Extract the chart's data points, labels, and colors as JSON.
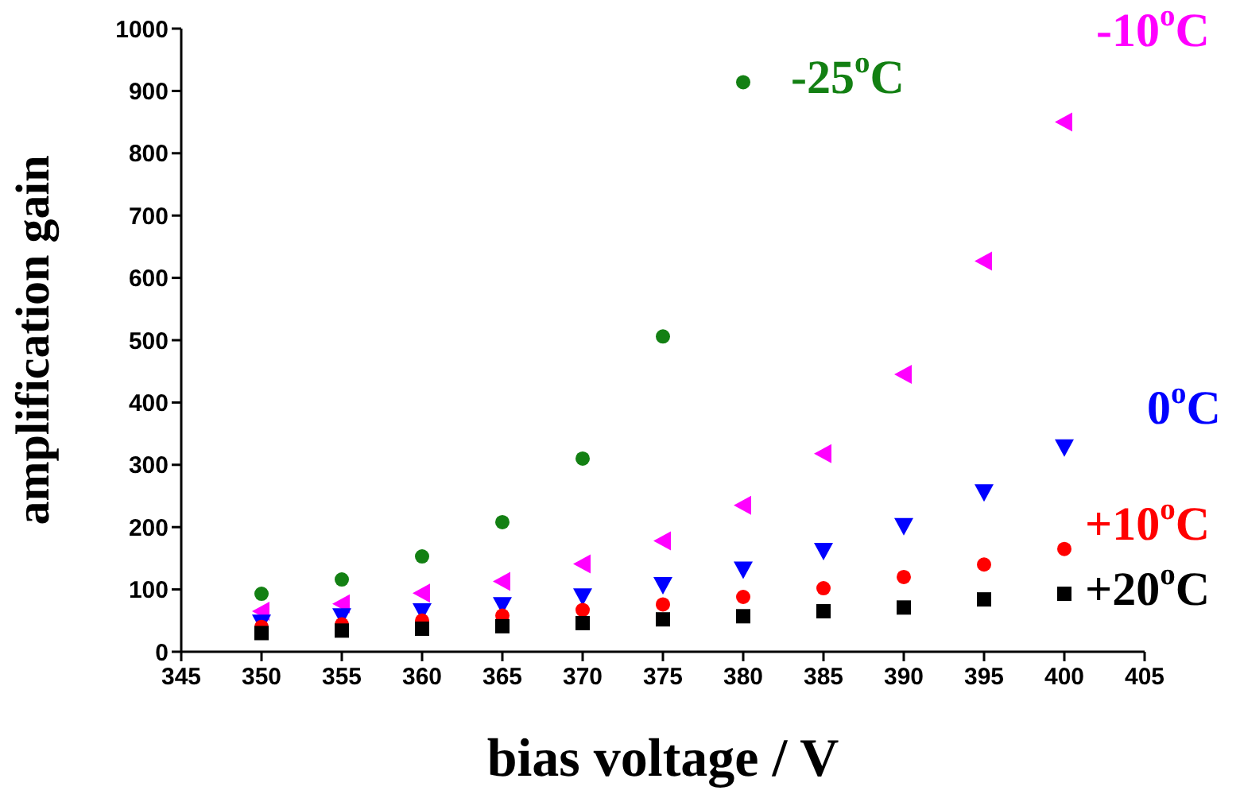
{
  "chart_data": {
    "type": "scatter",
    "xlabel": "bias voltage / V",
    "ylabel": "amplification gain",
    "x": [
      350,
      355,
      360,
      365,
      370,
      375,
      380,
      385,
      390,
      395,
      400
    ],
    "series": [
      {
        "name": "-25$^{o}$C",
        "color": "#138013",
        "marker": "circle",
        "x": [
          350,
          355,
          360,
          365,
          370,
          375,
          380
        ],
        "values": [
          93,
          116,
          153,
          208,
          310,
          506,
          914
        ]
      },
      {
        "name": "-10$^{o}$C",
        "color": "#ff00ff",
        "marker": "triangle-left",
        "values": [
          65,
          77,
          94,
          113,
          141,
          178,
          235,
          318,
          445,
          627,
          850
        ]
      },
      {
        "name": "0$^{o}$C",
        "color": "#0000ff",
        "marker": "triangle-down",
        "values": [
          47,
          57,
          65,
          75,
          89,
          107,
          132,
          162,
          202,
          256,
          328
        ]
      },
      {
        "name": "+10$^{o}$C",
        "color": "#ff0000",
        "marker": "circle",
        "values": [
          40,
          44,
          50,
          58,
          67,
          76,
          88,
          102,
          120,
          140,
          165
        ]
      },
      {
        "name": "+20$^{o}$C",
        "color": "#000000",
        "marker": "square",
        "values": [
          30,
          34,
          37,
          41,
          46,
          52,
          57,
          65,
          71,
          84,
          93
        ]
      }
    ],
    "xlim": [
      345,
      405
    ],
    "xticks": [
      345,
      350,
      355,
      360,
      365,
      370,
      375,
      380,
      385,
      390,
      395,
      400,
      405
    ],
    "ylim": [
      0,
      1000
    ],
    "yticks": [
      0,
      100,
      200,
      300,
      400,
      500,
      600,
      700,
      800,
      900,
      1000
    ],
    "grid": false,
    "legend": false
  }
}
